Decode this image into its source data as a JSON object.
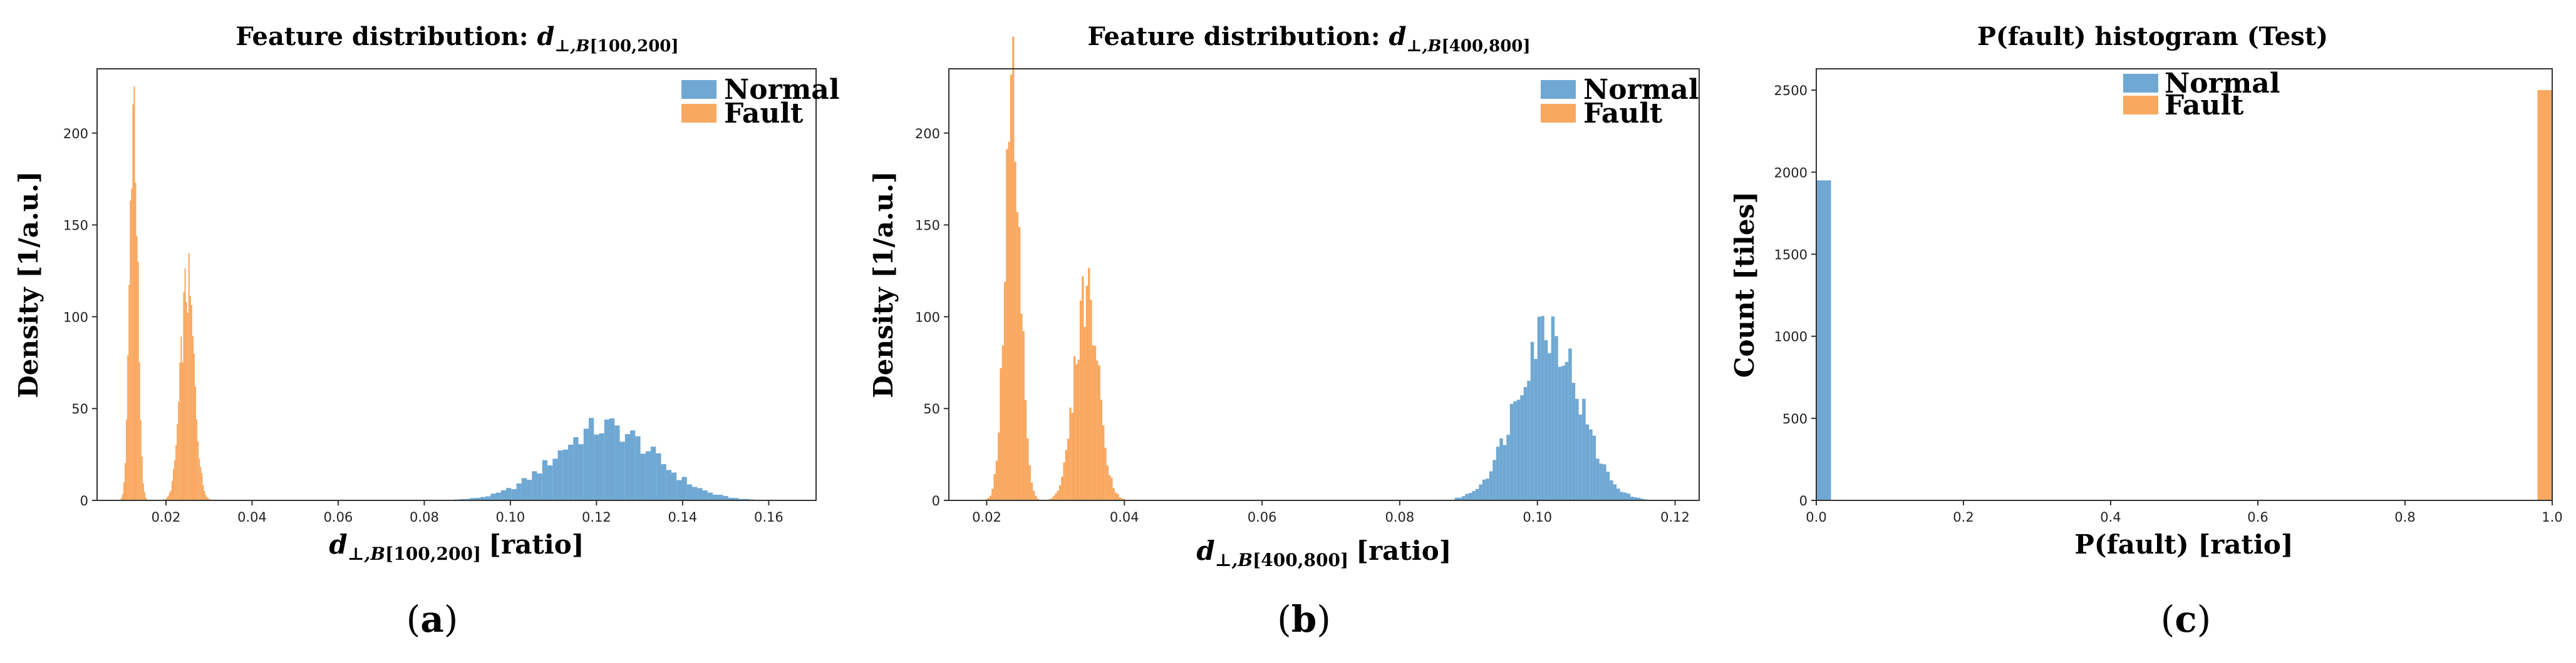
{
  "colors": {
    "normal": "#6fa8d3",
    "fault": "#f9a860"
  },
  "legend": {
    "normal": "Normal",
    "fault": "Fault"
  },
  "panel_labels": [
    "(a)",
    "(b)",
    "(c)"
  ],
  "chart_data": [
    {
      "type": "histogram",
      "title_prefix": "Feature distribution: ",
      "title_var": "d",
      "title_sub": "⊥,B",
      "title_range": "[100,200]",
      "xlabel_var": "d",
      "xlabel_sub": "⊥,B",
      "xlabel_range": "[100,200]",
      "xlabel_unit": "[ratio]",
      "ylabel": "Density [1/a.u.]",
      "xlim": [
        0.004,
        0.171
      ],
      "ylim": [
        0,
        235
      ],
      "xticks": [
        "0.02",
        "0.04",
        "0.06",
        "0.08",
        "0.10",
        "0.12",
        "0.14",
        "0.16"
      ],
      "yticks": [
        "0",
        "50",
        "100",
        "150",
        "200"
      ],
      "legend_placement": "top-right",
      "series": [
        {
          "name": "Normal",
          "color": "#6fa8d3",
          "dist": "gauss",
          "mean": 0.122,
          "sd": 0.0115,
          "peak": 40,
          "from": 0.075,
          "to": 0.168,
          "bin": 0.0012
        },
        {
          "name": "Fault",
          "color": "#f9a860",
          "dist": "gauss",
          "mean": 0.0125,
          "sd": 0.0009,
          "peak": 222,
          "from": 0.0095,
          "to": 0.0165,
          "bin": 0.0003
        },
        {
          "name": "Fault",
          "color": "#f9a860",
          "dist": "gauss",
          "mean": 0.025,
          "sd": 0.0016,
          "peak": 117,
          "from": 0.0195,
          "to": 0.0315,
          "bin": 0.0003
        }
      ]
    },
    {
      "type": "histogram",
      "title_prefix": "Feature distribution: ",
      "title_var": "d",
      "title_sub": "⊥,B",
      "title_range": "[400,800]",
      "xlabel_var": "d",
      "xlabel_sub": "⊥,B",
      "xlabel_range": "[400,800]",
      "xlabel_unit": "[ratio]",
      "ylabel": "Density [1/a.u.]",
      "xlim": [
        0.0145,
        0.1235
      ],
      "ylim": [
        0,
        235
      ],
      "xticks": [
        "0.02",
        "0.04",
        "0.06",
        "0.08",
        "0.10",
        "0.12"
      ],
      "yticks": [
        "0",
        "50",
        "100",
        "150",
        "200"
      ],
      "legend_placement": "top-right",
      "series": [
        {
          "name": "Normal",
          "color": "#6fa8d3",
          "dist": "gauss",
          "mean": 0.1015,
          "sd": 0.0045,
          "peak": 95,
          "from": 0.088,
          "to": 0.119,
          "bin": 0.0005
        },
        {
          "name": "Fault",
          "color": "#f9a860",
          "dist": "gauss",
          "mean": 0.0238,
          "sd": 0.0011,
          "peak": 223,
          "from": 0.0195,
          "to": 0.0275,
          "bin": 0.0003
        },
        {
          "name": "Fault",
          "color": "#f9a860",
          "dist": "gauss",
          "mean": 0.0345,
          "sd": 0.0017,
          "peak": 115,
          "from": 0.029,
          "to": 0.04,
          "bin": 0.0003
        }
      ]
    },
    {
      "type": "bar",
      "title": "P(fault) histogram (Test)",
      "xlabel": "P(fault) [ratio]",
      "ylabel": "Count [tiles]",
      "xlim": [
        0,
        1
      ],
      "ylim": [
        0,
        2630
      ],
      "xticks": [
        "0.0",
        "0.2",
        "0.4",
        "0.6",
        "0.8",
        "1.0"
      ],
      "yticks": [
        "0",
        "500",
        "1000",
        "1500",
        "2000",
        "2500"
      ],
      "legend_placement": "top-center",
      "series": [
        {
          "name": "Normal",
          "color": "#6fa8d3",
          "x0": 0.0,
          "x1": 0.02,
          "value": 1950
        },
        {
          "name": "Fault",
          "color": "#f9a860",
          "x0": 0.98,
          "x1": 1.0,
          "value": 2500
        }
      ]
    }
  ]
}
